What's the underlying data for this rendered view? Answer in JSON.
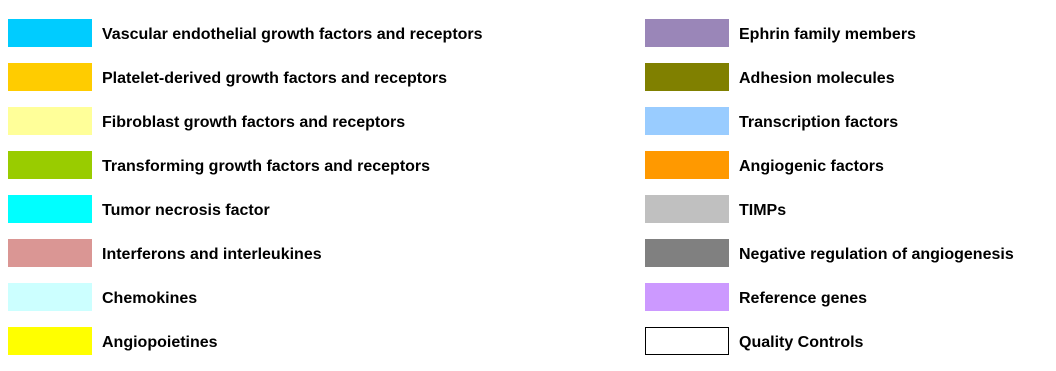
{
  "legend": {
    "left": [
      {
        "label": "Vascular endothelial growth factors and receptors",
        "color": "#00CCFF"
      },
      {
        "label": "Platelet-derived growth factors and receptors",
        "color": "#FFCC00"
      },
      {
        "label": "Fibroblast growth factors and receptors",
        "color": "#FFFF99"
      },
      {
        "label": "Transforming growth factors and receptors",
        "color": "#99CC00"
      },
      {
        "label": "Tumor necrosis factor",
        "color": "#00FFFF"
      },
      {
        "label": "Interferons and interleukines",
        "color": "#DA9694"
      },
      {
        "label": "Chemokines",
        "color": "#CCFFFF"
      },
      {
        "label": "Angiopoietines",
        "color": "#FFFF00"
      }
    ],
    "right": [
      {
        "label": "Ephrin family members",
        "color": "#9A86B8"
      },
      {
        "label": "Adhesion molecules",
        "color": "#808000"
      },
      {
        "label": "Transcription factors",
        "color": "#99CCFF"
      },
      {
        "label": "Angiogenic factors",
        "color": "#FF9900"
      },
      {
        "label": "TIMPs",
        "color": "#C0C0C0"
      },
      {
        "label": "Negative regulation of angiogenesis",
        "color": "#808080"
      },
      {
        "label": "Reference genes",
        "color": "#CC99FF"
      },
      {
        "label": "Quality Controls",
        "color": "#FFFFFF",
        "outlined": true
      }
    ]
  }
}
